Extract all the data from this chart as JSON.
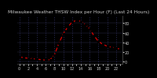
{
  "title": "Milwaukee Weather THSW Index per Hour (F) (Last 24 Hours)",
  "hours": [
    0,
    1,
    2,
    3,
    4,
    5,
    6,
    7,
    8,
    9,
    10,
    11,
    12,
    13,
    14,
    15,
    16,
    17,
    18,
    19,
    20,
    21,
    22,
    23
  ],
  "values": [
    10,
    8,
    7,
    6,
    5,
    4,
    3,
    4,
    14,
    38,
    58,
    72,
    82,
    86,
    84,
    78,
    68,
    54,
    42,
    36,
    32,
    30,
    28,
    26
  ],
  "line_color": "#dd0000",
  "marker_color": "#000000",
  "bg_color": "#000000",
  "plot_bg_color": "#000000",
  "title_bg_color": "#222222",
  "grid_color": "#444488",
  "text_color": "#cccccc",
  "ylim": [
    -5,
    95
  ],
  "ytick_vals": [
    0,
    20,
    40,
    60,
    80
  ],
  "ytick_labels": [
    "0",
    "20",
    "40",
    "60",
    "80"
  ],
  "title_fontsize": 4.2,
  "tick_fontsize": 3.5
}
